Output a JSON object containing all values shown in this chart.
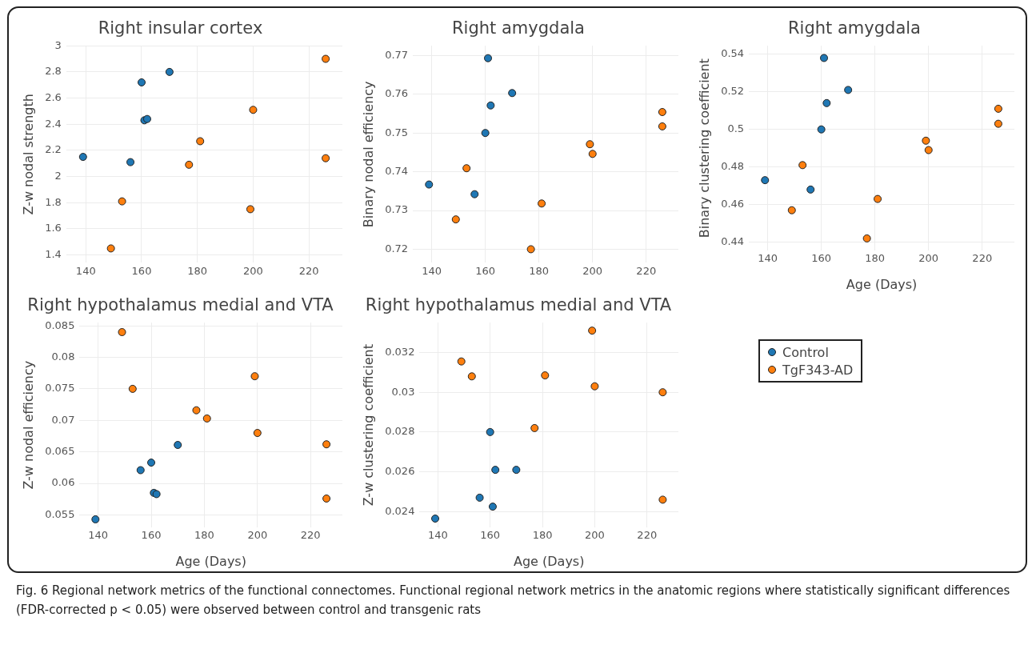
{
  "chart_data": [
    {
      "type": "scatter",
      "title": "Right insular cortex",
      "ylabel": "Z-w nodal strength",
      "xlim": [
        133,
        232
      ],
      "xticks": [
        140,
        160,
        180,
        200,
        220
      ],
      "ylim": [
        1.34,
        3.0
      ],
      "yticks": [
        1.4,
        1.6,
        1.8,
        2,
        2.2,
        2.4,
        2.6,
        2.8,
        3
      ],
      "grid": true,
      "marker": "circle",
      "annotations": [
        "Fig. 6 Regional network metrics of the functional connectomes. Functional regional network metrics in the anatomic regions where statistically significant differences (FDR-corrected p < 0.05) were observed between control and transgenic rats"
      ],
      "series": [
        {
          "color": "#1f77b4",
          "x": [
            139,
            156,
            160,
            161,
            162,
            170
          ],
          "values": [
            2.15,
            2.11,
            2.72,
            2.43,
            2.44,
            2.8
          ]
        },
        {
          "color": "#ff7f0e",
          "x": [
            149,
            153,
            177,
            181,
            199,
            200,
            226,
            226
          ],
          "values": [
            1.45,
            1.81,
            2.09,
            2.27,
            1.75,
            2.51,
            2.9,
            2.14
          ]
        }
      ]
    },
    {
      "type": "scatter",
      "title": "Right amygdala",
      "ylabel": "Binary nodal efficiency",
      "xlim": [
        133,
        232
      ],
      "xticks": [
        140,
        160,
        180,
        200,
        220
      ],
      "ylim": [
        0.7165,
        0.7725
      ],
      "yticks": [
        0.72,
        0.73,
        0.74,
        0.75,
        0.76,
        0.77
      ],
      "grid": true,
      "marker": "circle",
      "series": [
        {
          "color": "#1f77b4",
          "x": [
            139,
            156,
            160,
            161,
            162,
            170
          ],
          "values": [
            0.7367,
            0.7342,
            0.75,
            0.7693,
            0.7571,
            0.7603
          ]
        },
        {
          "color": "#ff7f0e",
          "x": [
            149,
            153,
            177,
            181,
            199,
            200,
            226,
            226
          ],
          "values": [
            0.7277,
            0.7409,
            0.72,
            0.7318,
            0.7471,
            0.7446,
            0.7554,
            0.7517
          ]
        }
      ]
    },
    {
      "type": "scatter",
      "title": "Right amygdala",
      "xlabel": "Age (Days)",
      "ylabel": "Binary clustering coefficient",
      "xlim": [
        133,
        232
      ],
      "xticks": [
        140,
        160,
        180,
        200,
        220
      ],
      "ylim": [
        0.4355,
        0.5445
      ],
      "yticks": [
        0.44,
        0.46,
        0.48,
        0.5,
        0.52,
        0.54
      ],
      "grid": true,
      "marker": "circle",
      "series": [
        {
          "color": "#1f77b4",
          "x": [
            139,
            156,
            160,
            161,
            162,
            170
          ],
          "values": [
            0.473,
            0.468,
            0.5,
            0.538,
            0.514,
            0.521
          ]
        },
        {
          "color": "#ff7f0e",
          "x": [
            149,
            153,
            177,
            181,
            199,
            200,
            226,
            226
          ],
          "values": [
            0.457,
            0.481,
            0.442,
            0.463,
            0.494,
            0.489,
            0.511,
            0.503
          ]
        }
      ]
    },
    {
      "type": "scatter",
      "title": "Right hypothalamus medial and VTA",
      "xlabel": "Age (Days)",
      "ylabel": "Z-w nodal efficiency",
      "xlim": [
        133,
        232
      ],
      "xticks": [
        140,
        160,
        180,
        200,
        220
      ],
      "ylim": [
        0.053,
        0.0855
      ],
      "yticks": [
        0.055,
        0.06,
        0.065,
        0.07,
        0.075,
        0.08,
        0.085
      ],
      "grid": true,
      "marker": "circle",
      "series": [
        {
          "color": "#1f77b4",
          "x": [
            139,
            156,
            160,
            161,
            162,
            170
          ],
          "values": [
            0.0543,
            0.0621,
            0.0633,
            0.0585,
            0.0583,
            0.0661
          ]
        },
        {
          "color": "#ff7f0e",
          "x": [
            149,
            153,
            177,
            181,
            199,
            200,
            226,
            226
          ],
          "values": [
            0.084,
            0.075,
            0.0716,
            0.0703,
            0.077,
            0.068,
            0.0662,
            0.0576
          ]
        }
      ]
    },
    {
      "type": "scatter",
      "title": "Right hypothalamus medial and VTA",
      "xlabel": "Age (Days)",
      "ylabel": "Z-w clustering coefficient",
      "xlim": [
        133,
        232
      ],
      "xticks": [
        140,
        160,
        180,
        200,
        220
      ],
      "ylim": [
        0.0232,
        0.0335
      ],
      "yticks": [
        0.024,
        0.026,
        0.028,
        0.03,
        0.032
      ],
      "grid": true,
      "marker": "circle",
      "legend": "right",
      "series": [
        {
          "name": "Control",
          "color": "#1f77b4",
          "x": [
            139,
            156,
            160,
            161,
            162,
            170
          ],
          "values": [
            0.02365,
            0.0247,
            0.028,
            0.02425,
            0.0261,
            0.0261
          ]
        },
        {
          "name": "TgF343-AD",
          "color": "#ff7f0e",
          "x": [
            149,
            153,
            177,
            181,
            199,
            200,
            226,
            226
          ],
          "values": [
            0.03155,
            0.0308,
            0.0282,
            0.03085,
            0.0331,
            0.0303,
            0.03,
            0.0246
          ]
        }
      ]
    }
  ]
}
